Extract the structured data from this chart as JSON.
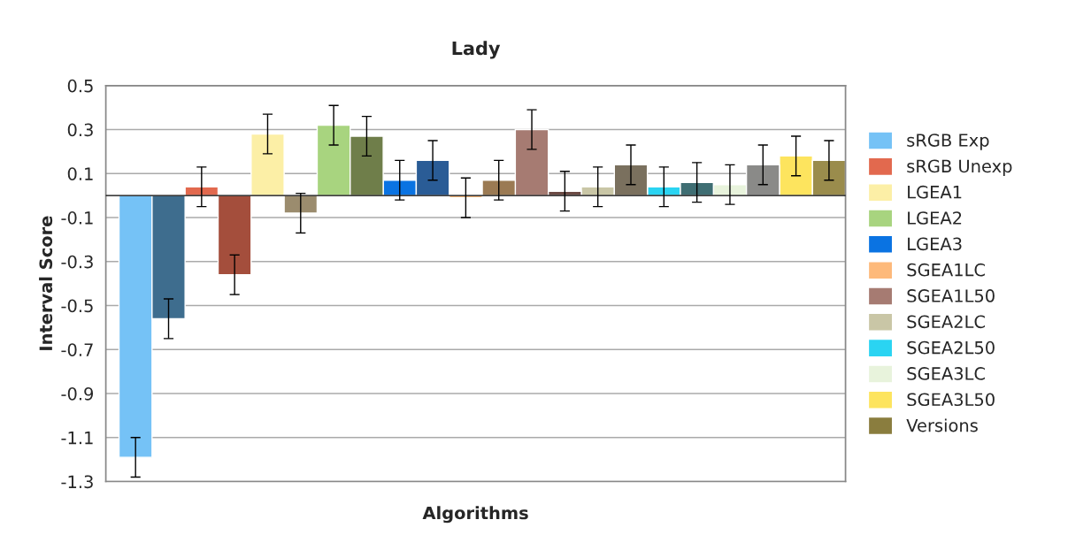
{
  "chart_data": {
    "type": "bar",
    "title": "Lady",
    "xlabel": "Algorithms",
    "ylabel": "Interval Score",
    "categories": [
      null,
      null,
      null,
      null,
      null,
      null,
      null,
      null,
      null,
      null,
      null,
      null,
      null,
      null,
      null,
      null,
      null,
      null,
      null,
      null,
      null,
      null
    ],
    "ylim": [
      -1.3,
      0.5
    ],
    "yticks": [
      -1.3,
      -1.1,
      -0.9,
      -0.7,
      -0.5,
      -0.3,
      -0.1,
      0.1,
      0.3,
      0.5
    ],
    "grid": "y",
    "legend": "right",
    "series": [
      {
        "name": "sRGB Exp",
        "color": "#75c2f6",
        "values": [
          -1.19,
          null,
          null,
          null,
          null,
          null,
          null,
          null,
          null,
          null,
          null,
          null,
          null,
          null,
          null,
          null,
          null,
          null,
          null,
          null,
          null,
          null
        ],
        "errors": [
          0.09,
          null,
          null,
          null,
          null,
          null,
          null,
          null,
          null,
          null,
          null,
          null,
          null,
          null,
          null,
          null,
          null,
          null,
          null,
          null,
          null,
          null
        ]
      },
      {
        "name": "sRGB Unexp",
        "color": "#e2694e",
        "values": [
          null,
          null,
          0.04,
          null,
          null,
          null,
          null,
          null,
          null,
          null,
          null,
          null,
          null,
          null,
          null,
          null,
          null,
          null,
          null,
          null,
          null,
          null
        ],
        "errors": [
          null,
          null,
          0.09,
          null,
          null,
          null,
          null,
          null,
          null,
          null,
          null,
          null,
          null,
          null,
          null,
          null,
          null,
          null,
          null,
          null,
          null,
          null
        ]
      },
      {
        "name": "LGEA1",
        "color": "#fcefa6",
        "values": [
          null,
          null,
          null,
          null,
          0.28,
          null,
          null,
          null,
          null,
          null,
          null,
          null,
          null,
          null,
          null,
          null,
          null,
          null,
          null,
          null,
          null,
          null
        ],
        "errors": [
          null,
          null,
          null,
          null,
          0.09,
          null,
          null,
          null,
          null,
          null,
          null,
          null,
          null,
          null,
          null,
          null,
          null,
          null,
          null,
          null,
          null,
          null
        ]
      },
      {
        "name": "LGEA2",
        "color": "#a8d47f",
        "values": [
          null,
          null,
          null,
          null,
          null,
          null,
          0.32,
          null,
          null,
          null,
          null,
          null,
          null,
          null,
          null,
          null,
          null,
          null,
          null,
          null,
          null,
          null
        ],
        "errors": [
          null,
          null,
          null,
          null,
          null,
          null,
          0.09,
          null,
          null,
          null,
          null,
          null,
          null,
          null,
          null,
          null,
          null,
          null,
          null,
          null,
          null,
          null
        ]
      },
      {
        "name": "LGEA3",
        "color": "#0a73e2",
        "values": [
          null,
          null,
          null,
          null,
          null,
          null,
          null,
          null,
          0.07,
          null,
          null,
          null,
          null,
          null,
          null,
          null,
          null,
          null,
          null,
          null,
          null,
          null
        ],
        "errors": [
          null,
          null,
          null,
          null,
          null,
          null,
          null,
          null,
          0.09,
          null,
          null,
          null,
          null,
          null,
          null,
          null,
          null,
          null,
          null,
          null,
          null,
          null
        ]
      },
      {
        "name": "SGEA1LC",
        "color": "#fdb97a",
        "values": [
          null,
          null,
          null,
          null,
          null,
          null,
          null,
          null,
          null,
          null,
          -0.01,
          null,
          null,
          null,
          null,
          null,
          null,
          null,
          null,
          null,
          null,
          null
        ],
        "errors": [
          null,
          null,
          null,
          null,
          null,
          null,
          null,
          null,
          null,
          null,
          0.09,
          null,
          null,
          null,
          null,
          null,
          null,
          null,
          null,
          null,
          null,
          null
        ]
      },
      {
        "name": "SGEA1L50",
        "color": "#a67b72",
        "values": [
          null,
          null,
          null,
          null,
          null,
          null,
          null,
          null,
          null,
          null,
          null,
          null,
          0.3,
          null,
          null,
          null,
          null,
          null,
          null,
          null,
          null,
          null
        ],
        "errors": [
          null,
          null,
          null,
          null,
          null,
          null,
          null,
          null,
          null,
          null,
          null,
          null,
          0.09,
          null,
          null,
          null,
          null,
          null,
          null,
          null,
          null,
          null
        ]
      },
      {
        "name": "SGEA2LC",
        "color": "#c9c6a6",
        "values": [
          null,
          null,
          null,
          null,
          null,
          null,
          null,
          null,
          null,
          null,
          null,
          null,
          null,
          null,
          0.04,
          null,
          null,
          null,
          null,
          null,
          null,
          null
        ],
        "errors": [
          null,
          null,
          null,
          null,
          null,
          null,
          null,
          null,
          null,
          null,
          null,
          null,
          null,
          null,
          0.09,
          null,
          null,
          null,
          null,
          null,
          null,
          null
        ]
      },
      {
        "name": "SGEA2L50",
        "color": "#2ad4f2",
        "values": [
          null,
          null,
          null,
          null,
          null,
          null,
          null,
          null,
          null,
          null,
          null,
          null,
          null,
          null,
          null,
          null,
          0.04,
          null,
          null,
          null,
          null,
          null
        ],
        "errors": [
          null,
          null,
          null,
          null,
          null,
          null,
          null,
          null,
          null,
          null,
          null,
          null,
          null,
          null,
          null,
          null,
          0.09,
          null,
          null,
          null,
          null,
          null
        ]
      },
      {
        "name": "SGEA3LC",
        "color": "#e8f3dc",
        "values": [
          null,
          null,
          null,
          null,
          null,
          null,
          null,
          null,
          null,
          null,
          null,
          null,
          null,
          null,
          null,
          null,
          null,
          null,
          0.05,
          null,
          null,
          null
        ],
        "errors": [
          null,
          null,
          null,
          null,
          null,
          null,
          null,
          null,
          null,
          null,
          null,
          null,
          null,
          null,
          null,
          null,
          null,
          null,
          0.09,
          null,
          null,
          null
        ]
      },
      {
        "name": "SGEA3L50",
        "color": "#fde45e",
        "values": [
          null,
          null,
          null,
          null,
          null,
          null,
          null,
          null,
          null,
          null,
          null,
          null,
          null,
          null,
          null,
          null,
          null,
          null,
          null,
          null,
          0.18,
          null
        ],
        "errors": [
          null,
          null,
          null,
          null,
          null,
          null,
          null,
          null,
          null,
          null,
          null,
          null,
          null,
          null,
          null,
          null,
          null,
          null,
          null,
          null,
          0.09,
          null
        ]
      },
      {
        "name": "Versions",
        "color": "#8a7d3e",
        "colors": [
          "#3e6d8e",
          "#3e6d8e",
          "#a44e3c",
          "#a44e3c",
          "#9b8c6e",
          "#9b8c6e",
          "#6f7e4a",
          "#6f7e4a",
          "#2a5c96",
          "#2a5c96",
          "#9b7a53",
          "#9b7a53",
          "#6b4a44",
          "#6b4a44",
          "#7a705e",
          "#7a705e",
          "#3f6e73",
          "#3f6e73",
          "#8a8a88",
          "#8a8a88",
          "#9a8c4c",
          "#9a8c4c"
        ],
        "values": [
          null,
          -0.56,
          null,
          -0.36,
          null,
          -0.08,
          null,
          0.27,
          null,
          0.16,
          null,
          0.07,
          null,
          0.02,
          null,
          0.14,
          null,
          0.06,
          null,
          0.14,
          null,
          0.16
        ],
        "errors": [
          null,
          0.09,
          null,
          0.09,
          null,
          0.09,
          null,
          0.09,
          null,
          0.09,
          null,
          0.09,
          null,
          0.09,
          null,
          0.09,
          null,
          0.09,
          null,
          0.09,
          null,
          0.09
        ]
      }
    ]
  }
}
